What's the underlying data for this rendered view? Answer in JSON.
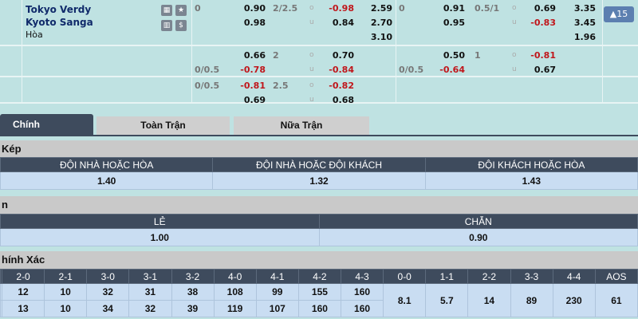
{
  "match": {
    "home": "Tokyo Verdy",
    "away": "Kyoto Sanga",
    "draw": "Hòa",
    "expand_button": "▲15"
  },
  "odds_rows": [
    {
      "ft_hdp_line": "0",
      "ft_hdp_home": "0.90",
      "ft_hdp_away": "0.98",
      "ft_ou_line": "2/2.5",
      "ft_over": "-0.98",
      "ft_under": "0.84",
      "ft_1x2": [
        "2.59",
        "2.70",
        "3.10"
      ],
      "h1_hdp_line": "0",
      "h1_hdp_home": "0.91",
      "h1_hdp_away": "0.95",
      "h1_ou_line": "0.5/1",
      "h1_over": "0.69",
      "h1_under": "-0.83",
      "h1_1x2": [
        "3.35",
        "3.45",
        "1.96"
      ]
    },
    {
      "ft_hdp_line": "0/0.5",
      "ft_hdp_home": "0.66",
      "ft_hdp_away": "-0.78",
      "ft_ou_line": "2",
      "ft_over": "0.70",
      "ft_under": "-0.84",
      "h1_hdp_line": "0/0.5",
      "h1_hdp_home": "0.50",
      "h1_hdp_away": "-0.64",
      "h1_ou_line": "1",
      "h1_over": "-0.81",
      "h1_under": "0.67"
    },
    {
      "ft_hdp_line": "0/0.5",
      "ft_hdp_home": "-0.81",
      "ft_hdp_away": "0.69",
      "ft_ou_line": "2.5",
      "ft_over": "-0.82",
      "ft_under": "0.68"
    }
  ],
  "ou_labels": {
    "over": "o",
    "under": "u"
  },
  "tabs": [
    "Chính",
    "Toàn Trận",
    "Nữa Trận"
  ],
  "double_chance": {
    "title": "Kép",
    "headers": [
      "ĐỘI NHÀ HOẶC HÒA",
      "ĐỘI NHÀ HOẶC ĐỘI KHÁCH",
      "ĐỘI KHÁCH HOẶC HÒA"
    ],
    "values": [
      "1.40",
      "1.32",
      "1.43"
    ]
  },
  "odd_even": {
    "title": "n",
    "headers": [
      "LẺ",
      "CHẴN"
    ],
    "values": [
      "1.00",
      "0.90"
    ]
  },
  "correct_score": {
    "title": "hính Xác",
    "headers": [
      "2-0",
      "2-1",
      "3-0",
      "3-1",
      "3-2",
      "4-0",
      "4-1",
      "4-2",
      "4-3",
      "0-0",
      "1-1",
      "2-2",
      "3-3",
      "4-4",
      "AOS"
    ],
    "home": [
      "12",
      "10",
      "32",
      "31",
      "38",
      "108",
      "99",
      "155",
      "160"
    ],
    "away": [
      "13",
      "10",
      "34",
      "32",
      "39",
      "119",
      "107",
      "160",
      "160"
    ],
    "draws": [
      "8.1",
      "5.7",
      "14",
      "89",
      "230",
      "61"
    ]
  }
}
